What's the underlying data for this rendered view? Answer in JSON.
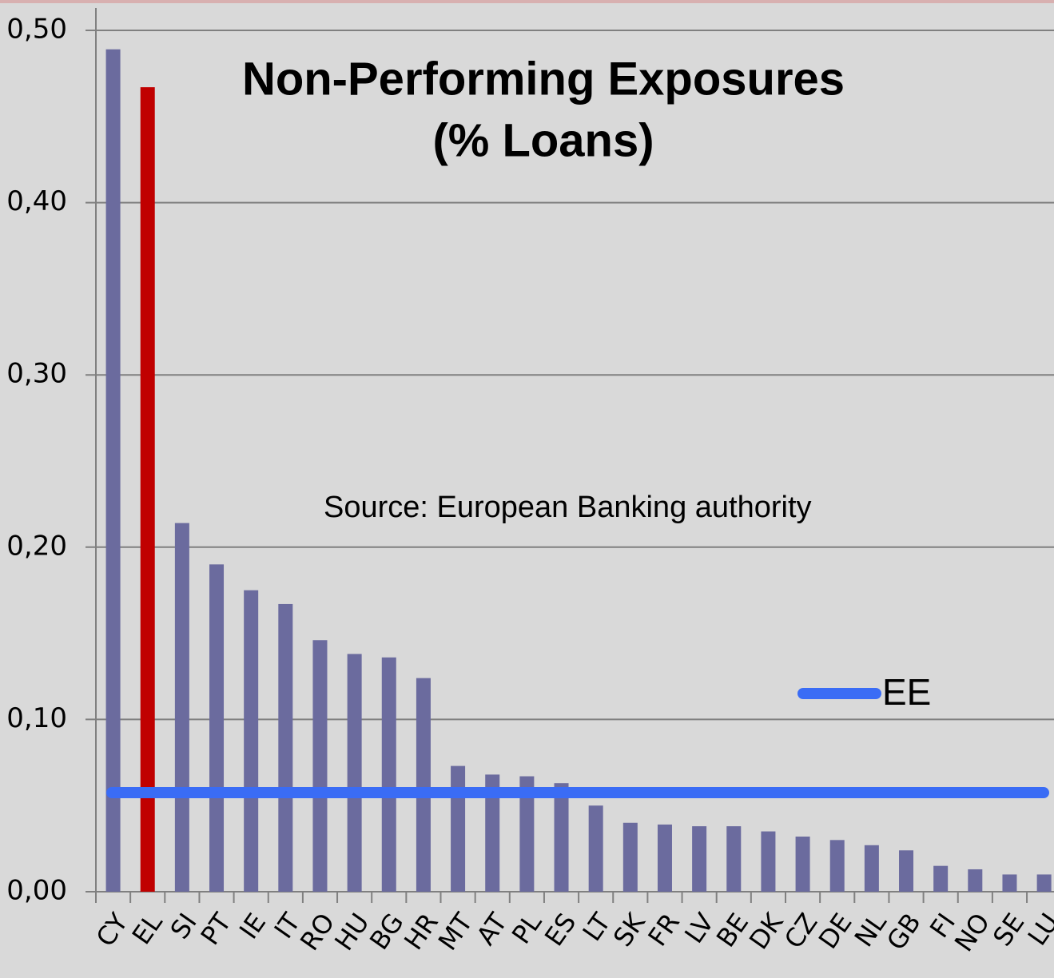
{
  "chart_data": {
    "type": "bar",
    "title": [
      "Non-Performing Exposures",
      "(% Loans)"
    ],
    "annotation": "Source:  European Banking authority",
    "categories": [
      "CY",
      "EL",
      "SI",
      "PT",
      "IE",
      "IT",
      "RO",
      "HU",
      "BG",
      "HR",
      "MT",
      "AT",
      "PL",
      "ES",
      "LT",
      "SK",
      "FR",
      "LV",
      "BE",
      "DK",
      "CZ",
      "DE",
      "NL",
      "GB",
      "FI",
      "NO",
      "SE",
      "LU"
    ],
    "values": [
      0.489,
      0.467,
      0.214,
      0.19,
      0.175,
      0.167,
      0.146,
      0.138,
      0.136,
      0.124,
      0.073,
      0.068,
      0.067,
      0.063,
      0.05,
      0.04,
      0.039,
      0.038,
      0.038,
      0.035,
      0.032,
      0.03,
      0.027,
      0.024,
      0.015,
      0.013,
      0.01,
      0.01
    ],
    "colors": [
      "#6b6b9e",
      "#c00000",
      "#6b6b9e",
      "#6b6b9e",
      "#6b6b9e",
      "#6b6b9e",
      "#6b6b9e",
      "#6b6b9e",
      "#6b6b9e",
      "#6b6b9e",
      "#6b6b9e",
      "#6b6b9e",
      "#6b6b9e",
      "#6b6b9e",
      "#6b6b9e",
      "#6b6b9e",
      "#6b6b9e",
      "#6b6b9e",
      "#6b6b9e",
      "#6b6b9e",
      "#6b6b9e",
      "#6b6b9e",
      "#6b6b9e",
      "#6b6b9e",
      "#6b6b9e",
      "#6b6b9e",
      "#6b6b9e",
      "#6b6b9e"
    ],
    "reference_lines": [
      {
        "name": "EE",
        "value": 0.0575,
        "color": "#3a6cf5"
      }
    ],
    "ylim": [
      0,
      0.5
    ],
    "yticks": [
      {
        "value": 0,
        "label": "0,00"
      },
      {
        "value": 0.1,
        "label": "0,10"
      },
      {
        "value": 0.2,
        "label": "0,20"
      },
      {
        "value": 0.3,
        "label": "0,30"
      },
      {
        "value": 0.4,
        "label": "0,40"
      },
      {
        "value": 0.5,
        "label": "0,50"
      }
    ],
    "grid": true
  }
}
